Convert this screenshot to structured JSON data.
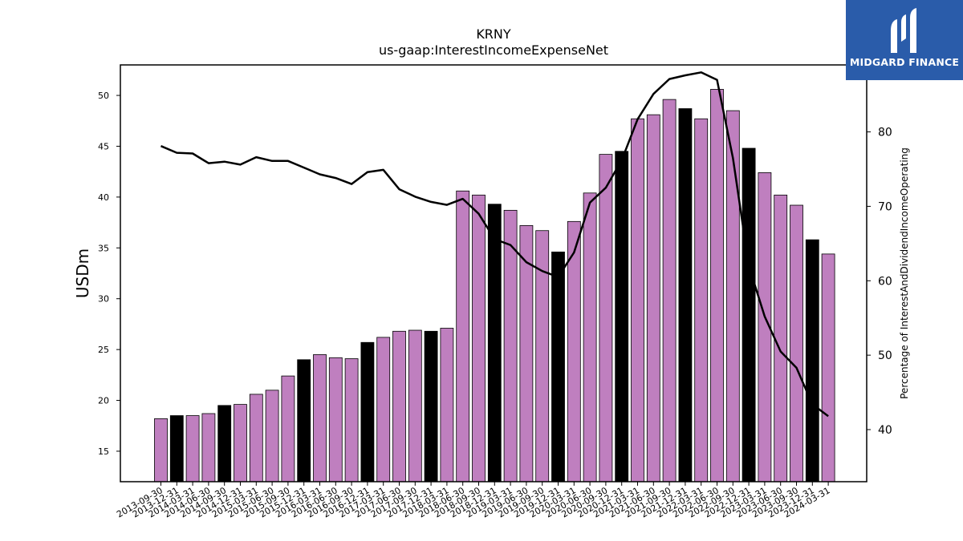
{
  "logo": {
    "text": "MIDGARD FINANCE",
    "icon": "midgard-m-logo-icon",
    "bg": "#2a5caa"
  },
  "chart_data": {
    "type": "bar",
    "title": "KRNY",
    "subtitle": "us-gaap:InterestIncomeExpenseNet",
    "ylabel": "USDm",
    "y2label": "Percentage of InterestAndDividendIncomeOperating",
    "ylim": [
      12,
      53
    ],
    "y2lim": [
      33,
      89
    ],
    "yticks": [
      15,
      20,
      25,
      30,
      35,
      40,
      45,
      50
    ],
    "y2ticks": [
      40,
      50,
      60,
      70,
      80
    ],
    "bar_color": "#bf7fbf",
    "highlight_color": "#000000",
    "line_color": "#000000",
    "categories": [
      "2013-09-30",
      "2013-12-31",
      "2014-03-31",
      "2014-06-30",
      "2014-09-30",
      "2014-12-31",
      "2015-03-31",
      "2015-06-30",
      "2015-09-30",
      "2015-12-31",
      "2016-03-31",
      "2016-06-30",
      "2016-09-30",
      "2016-12-31",
      "2017-03-31",
      "2017-06-30",
      "2017-09-30",
      "2017-12-31",
      "2018-03-31",
      "2018-06-30",
      "2018-09-30",
      "2018-12-31",
      "2019-03-31",
      "2019-06-30",
      "2019-09-30",
      "2019-12-31",
      "2020-03-31",
      "2020-06-30",
      "2020-09-30",
      "2020-12-31",
      "2021-03-31",
      "2021-06-30",
      "2021-09-30",
      "2021-12-31",
      "2022-03-31",
      "2022-06-30",
      "2022-09-30",
      "2022-12-31",
      "2023-03-31",
      "2023-06-30",
      "2023-09-30",
      "2023-12-31",
      "2024-03-31"
    ],
    "series": [
      {
        "type": "bar",
        "values": [
          18.2,
          18.5,
          18.5,
          18.7,
          19.5,
          19.6,
          20.6,
          21.0,
          22.4,
          24.0,
          24.5,
          24.2,
          24.1,
          25.7,
          26.2,
          26.8,
          26.9,
          26.8,
          27.1,
          40.6,
          40.2,
          39.3,
          38.7,
          37.2,
          36.7,
          34.6,
          37.6,
          40.4,
          44.2,
          44.5,
          47.7,
          48.1,
          49.6,
          48.7,
          47.7,
          50.6,
          48.5,
          44.8,
          42.4,
          40.2,
          39.2,
          35.8,
          34.4
        ],
        "highlighted": [
          false,
          true,
          false,
          false,
          true,
          false,
          false,
          false,
          false,
          true,
          false,
          false,
          false,
          true,
          false,
          false,
          false,
          true,
          false,
          false,
          false,
          true,
          false,
          false,
          false,
          true,
          false,
          false,
          false,
          true,
          false,
          false,
          false,
          true,
          false,
          false,
          false,
          true,
          false,
          false,
          false,
          true,
          false
        ]
      },
      {
        "type": "line",
        "axis": "right",
        "values": [
          78.1,
          77.2,
          77.1,
          75.8,
          76.0,
          75.6,
          76.6,
          76.1,
          76.1,
          75.2,
          74.3,
          73.8,
          73.0,
          74.6,
          74.9,
          72.3,
          71.3,
          70.6,
          70.2,
          71.0,
          69.0,
          65.6,
          64.8,
          62.5,
          61.3,
          60.5,
          63.8,
          70.5,
          72.5,
          76.2,
          81.7,
          85.1,
          87.1,
          87.6,
          88.0,
          87.0,
          76.5,
          62.0,
          55.2,
          50.5,
          48.3,
          43.4,
          41.8
        ]
      }
    ]
  }
}
